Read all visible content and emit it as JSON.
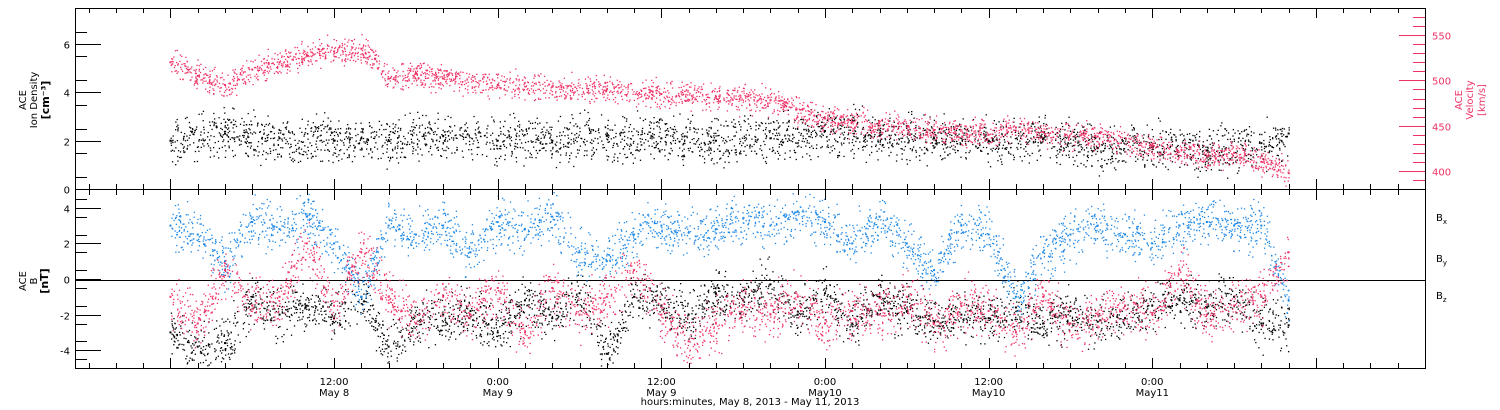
{
  "chart_data": [
    {
      "type": "scatter",
      "panel": "top",
      "ylabel_left": [
        "ACE",
        "Ion Density",
        "[cm⁻³]"
      ],
      "ylabel_right": [
        "ACE",
        "Velocity",
        "[km/s]"
      ],
      "ylim_left": [
        0,
        7.5
      ],
      "left_ticks": [
        "0",
        "2",
        "4",
        "6"
      ],
      "ylim_right": [
        380,
        580
      ],
      "right_ticks": [
        "400",
        "450",
        "500",
        "550"
      ],
      "series": [
        {
          "name": "Ion Density",
          "axis": "left",
          "color": "#000000",
          "x_hours": [
            0,
            4,
            8,
            12,
            14,
            16,
            20,
            24,
            28,
            32,
            36,
            40,
            44,
            48,
            52,
            56,
            60,
            64,
            68,
            72,
            76,
            80,
            82
          ],
          "values": [
            2.0,
            2.3,
            2.1,
            2.0,
            2.1,
            2.0,
            2.2,
            2.0,
            2.0,
            2.2,
            2.1,
            2.0,
            2.1,
            2.4,
            2.2,
            2.1,
            2.0,
            2.1,
            1.7,
            1.8,
            1.6,
            1.9,
            2.3
          ]
        },
        {
          "name": "Velocity",
          "axis": "right",
          "color": "#ee3366",
          "x_hours": [
            0,
            2,
            4,
            6,
            8,
            10,
            12,
            14,
            15,
            16,
            18,
            20,
            24,
            28,
            32,
            36,
            40,
            44,
            48,
            50,
            52,
            56,
            60,
            62,
            64,
            68,
            72,
            76,
            78,
            80,
            82
          ],
          "values": [
            520,
            505,
            495,
            512,
            520,
            528,
            532,
            535,
            524,
            502,
            508,
            502,
            495,
            493,
            490,
            485,
            482,
            478,
            458,
            454,
            450,
            445,
            440,
            448,
            443,
            438,
            428,
            416,
            420,
            410,
            398
          ]
        }
      ]
    },
    {
      "type": "scatter",
      "panel": "bottom",
      "ylabel_left": [
        "ACE",
        "B",
        "[nT]"
      ],
      "ylim": [
        -5,
        5
      ],
      "left_ticks": [
        "-4",
        "-2",
        "0",
        "2",
        "4"
      ],
      "legend_position": "right",
      "series": [
        {
          "name": "Bx",
          "color": "#000000",
          "x_hours": [
            0,
            2,
            4,
            6,
            8,
            10,
            12,
            14,
            16,
            18,
            20,
            22,
            24,
            26,
            28,
            30,
            32,
            34,
            36,
            38,
            40,
            42,
            44,
            46,
            48,
            50,
            52,
            54,
            56,
            58,
            60,
            62,
            64,
            66,
            68,
            70,
            72,
            74,
            76,
            78,
            80,
            82
          ],
          "values": [
            -3.0,
            -3.8,
            -3.6,
            -1.0,
            -2.0,
            -1.5,
            -2.2,
            -1.0,
            -3.8,
            -2.5,
            -2.0,
            -1.8,
            -3.0,
            -1.2,
            -2.2,
            -0.8,
            -4.2,
            -1.0,
            -1.5,
            -2.0,
            -0.8,
            -1.2,
            -0.3,
            -2.0,
            -0.8,
            -2.5,
            -1.0,
            -1.8,
            -2.4,
            -2.0,
            -2.2,
            -1.6,
            -2.5,
            -1.8,
            -2.4,
            -2.2,
            -1.5,
            -1.2,
            -1.6,
            -1.0,
            -2.5,
            -2.6
          ]
        },
        {
          "name": "By",
          "color": "#1e88e5",
          "x_hours": [
            0,
            2,
            4,
            6,
            8,
            10,
            12,
            14,
            16,
            18,
            20,
            22,
            24,
            26,
            28,
            30,
            32,
            34,
            36,
            38,
            40,
            42,
            44,
            46,
            48,
            50,
            52,
            54,
            56,
            58,
            60,
            62,
            64,
            66,
            68,
            70,
            72,
            74,
            76,
            78,
            80,
            82
          ],
          "values": [
            3.0,
            2.5,
            1.0,
            3.2,
            2.8,
            3.5,
            2.0,
            -1.0,
            3.0,
            2.5,
            3.0,
            1.5,
            3.2,
            2.8,
            3.5,
            1.5,
            1.0,
            2.5,
            3.0,
            2.6,
            2.8,
            3.4,
            3.0,
            3.8,
            3.2,
            2.0,
            3.5,
            2.0,
            0.5,
            3.0,
            2.5,
            -1.0,
            1.5,
            2.5,
            3.0,
            2.5,
            2.0,
            3.0,
            3.2,
            3.0,
            3.0,
            -1.2
          ]
        },
        {
          "name": "Bz",
          "color": "#ee3366",
          "x_hours": [
            0,
            2,
            4,
            6,
            8,
            10,
            12,
            14,
            16,
            18,
            20,
            22,
            24,
            26,
            28,
            30,
            32,
            34,
            36,
            38,
            40,
            42,
            44,
            46,
            48,
            50,
            52,
            54,
            56,
            58,
            60,
            62,
            64,
            66,
            68,
            70,
            72,
            74,
            76,
            78,
            80,
            82
          ],
          "values": [
            -1.0,
            -2.5,
            0.5,
            -1.5,
            -1.0,
            2.0,
            -1.5,
            1.5,
            -1.0,
            -2.5,
            -1.0,
            -2.0,
            -0.5,
            -3.0,
            -0.5,
            -2.0,
            -1.0,
            0.5,
            -2.0,
            -3.5,
            -2.5,
            -1.5,
            -2.0,
            -1.0,
            -2.5,
            -1.8,
            -2.0,
            -1.0,
            -2.5,
            -1.5,
            -1.8,
            -3.0,
            -1.0,
            -2.5,
            -2.0,
            -1.5,
            -2.0,
            0.5,
            -2.0,
            -1.5,
            -1.0,
            1.5
          ]
        }
      ]
    }
  ],
  "time_axis": {
    "xlim_hours": [
      -7,
      92
    ],
    "ticks": [
      {
        "hours": 12,
        "time": "12:00",
        "date": "May 8"
      },
      {
        "hours": 24,
        "time": "0:00",
        "date": "May 9"
      },
      {
        "hours": 36,
        "time": "12:00",
        "date": "May 9"
      },
      {
        "hours": 48,
        "time": "0:00",
        "date": "May10"
      },
      {
        "hours": 60,
        "time": "12:00",
        "date": "May10"
      },
      {
        "hours": 72,
        "time": "0:00",
        "date": "May11"
      }
    ],
    "title": "hours:minutes, May  8, 2013 - May 11, 2013"
  },
  "legend": {
    "bx": {
      "base": "B",
      "sub": "x",
      "color": "#000000"
    },
    "by": {
      "base": "B",
      "sub": "y",
      "color": "#1e88e5"
    },
    "bz": {
      "base": "B",
      "sub": "z",
      "color": "#ee3366"
    }
  },
  "colors": {
    "density": "#000000",
    "velocity": "#ee3366",
    "by": "#1e88e5",
    "bz": "#ee3366",
    "bx": "#000000"
  }
}
